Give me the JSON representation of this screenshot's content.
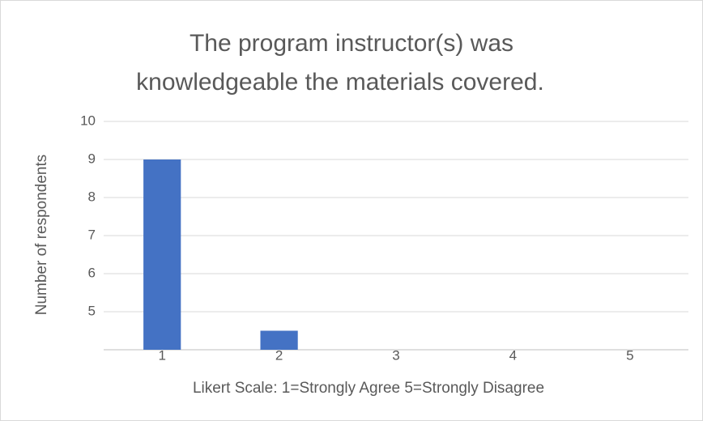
{
  "chart_data": {
    "type": "bar",
    "title": [
      "The program instructor(s) was",
      "knowledgeable the materials covered."
    ],
    "x_label": "Likert Scale: 1=Strongly Agree 5=Strongly Disagree",
    "y_label": "Number of respondents",
    "categories": [
      "1",
      "2",
      "3",
      "4",
      "5"
    ],
    "values": [
      9,
      4.5,
      null,
      null,
      null
    ],
    "color": "#4472c4",
    "ylim": [
      4,
      10
    ],
    "yticks": [
      5,
      6,
      7,
      8,
      9,
      10
    ],
    "grid": true
  }
}
